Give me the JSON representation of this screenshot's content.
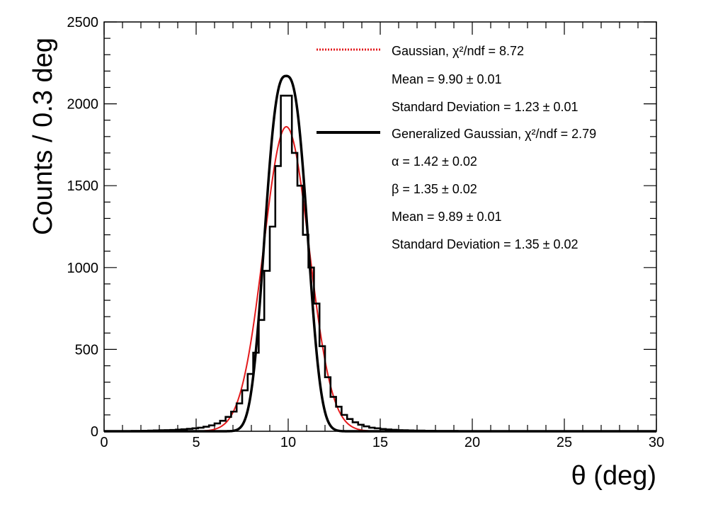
{
  "chart_data": {
    "type": "histogram",
    "xlabel": "θ (deg)",
    "ylabel": "Counts / 0.3 deg",
    "xlim": [
      0,
      30
    ],
    "ylim": [
      0,
      2500
    ],
    "xticks": [
      "0",
      "5",
      "10",
      "15",
      "20",
      "25",
      "30"
    ],
    "yticks": [
      "0",
      "500",
      "1000",
      "1500",
      "2000",
      "2500"
    ],
    "grid": false,
    "legend_position": "top-right",
    "bin_width": 0.3,
    "histogram": {
      "x": [
        0.15,
        0.45,
        0.75,
        1.05,
        1.35,
        1.65,
        1.95,
        2.25,
        2.55,
        2.85,
        3.15,
        3.45,
        3.75,
        4.05,
        4.35,
        4.65,
        4.95,
        5.25,
        5.55,
        5.85,
        6.15,
        6.45,
        6.75,
        7.05,
        7.35,
        7.65,
        7.95,
        8.25,
        8.55,
        8.85,
        9.15,
        9.45,
        9.75,
        10.05,
        10.35,
        10.65,
        10.95,
        11.25,
        11.55,
        11.85,
        12.15,
        12.45,
        12.75,
        13.05,
        13.35,
        13.65,
        13.95,
        14.25,
        14.55,
        14.85,
        15.15,
        15.45,
        15.75,
        16.05,
        16.35,
        16.65,
        16.95,
        17.25,
        17.55,
        17.85,
        18.15,
        18.45,
        18.75,
        19.05,
        19.35,
        19.65,
        19.95,
        20.25,
        20.55,
        20.85,
        21.15,
        21.45,
        21.75,
        22.05,
        22.35,
        22.65,
        22.95,
        23.25,
        23.55,
        23.85,
        24.15,
        24.45,
        24.75,
        25.05,
        25.35,
        25.65,
        25.95,
        26.25,
        26.55,
        26.85,
        27.15,
        27.45,
        27.75,
        28.05,
        28.35,
        28.65,
        28.95,
        29.25,
        29.55,
        29.85
      ],
      "counts": [
        0,
        0,
        0,
        1,
        1,
        2,
        2,
        3,
        4,
        5,
        6,
        7,
        8,
        10,
        12,
        15,
        18,
        22,
        28,
        36,
        48,
        64,
        88,
        120,
        170,
        250,
        350,
        480,
        680,
        980,
        1250,
        1620,
        2050,
        2050,
        1700,
        1500,
        1200,
        1000,
        780,
        520,
        330,
        210,
        150,
        100,
        75,
        55,
        40,
        30,
        22,
        18,
        14,
        11,
        9,
        7,
        6,
        5,
        4,
        4,
        3,
        3,
        2,
        2,
        2,
        2,
        1,
        1,
        1,
        1,
        1,
        1,
        1,
        1,
        1,
        1,
        1,
        1,
        1,
        1,
        0,
        0,
        0,
        0,
        0,
        0,
        0,
        0,
        0,
        0,
        0,
        0,
        0,
        0,
        0,
        0,
        0,
        0,
        0,
        0,
        0,
        0
      ]
    },
    "series": [
      {
        "name": "Gaussian, χ²/ndf = 8.72",
        "model": "gaussian",
        "color": "#e31a1c",
        "line_style": "dotted-in-legend",
        "params": {
          "amplitude": 1860,
          "mean": 9.9,
          "sigma": 1.23
        },
        "stats": [
          "Mean = 9.90 ± 0.01",
          "Standard Deviation = 1.23 ± 0.01"
        ]
      },
      {
        "name": "Generalized Gaussian, χ²/ndf = 2.79",
        "model": "generalized-gaussian",
        "color": "#000000",
        "line_style": "solid",
        "params": {
          "amplitude": 2170,
          "mean": 9.89,
          "alpha": 1.42,
          "beta": 1.35
        },
        "stats": [
          "α = 1.42 ± 0.02",
          "β = 1.35 ± 0.02",
          "Mean = 9.89 ± 0.01",
          "Standard Deviation = 1.35 ± 0.02"
        ]
      }
    ]
  }
}
